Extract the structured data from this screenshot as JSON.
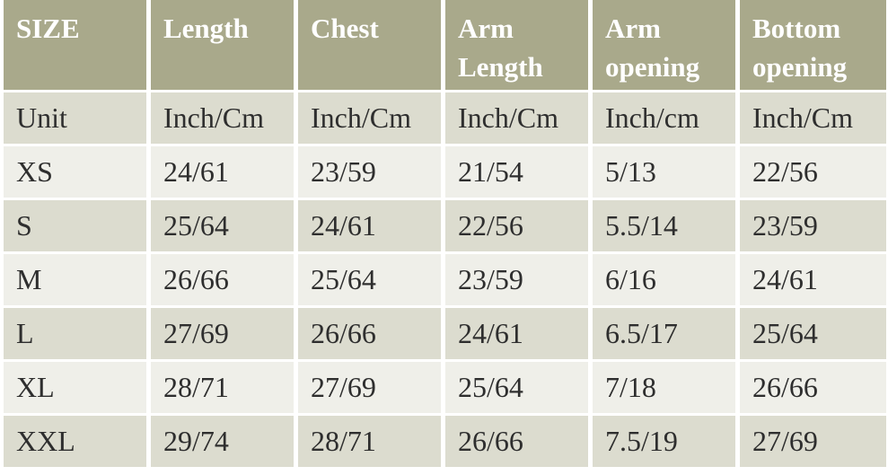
{
  "table": {
    "header": [
      "SIZE",
      "Length",
      "Chest",
      "Arm Length",
      "Arm opening",
      "Bottom opening"
    ],
    "rows": [
      [
        "Unit",
        "Inch/Cm",
        "Inch/Cm",
        "Inch/Cm",
        "Inch/cm",
        "Inch/Cm"
      ],
      [
        "XS",
        "24/61",
        "23/59",
        "21/54",
        "5/13",
        "22/56"
      ],
      [
        "S",
        "25/64",
        "24/61",
        "22/56",
        "5.5/14",
        "23/59"
      ],
      [
        "M",
        "26/66",
        "25/64",
        "23/59",
        "6/16",
        "24/61"
      ],
      [
        "L",
        "27/69",
        "26/66",
        "24/61",
        "6.5/17",
        "25/64"
      ],
      [
        "XL",
        "28/71",
        "27/69",
        "25/64",
        "7/18",
        "26/66"
      ],
      [
        "XXL",
        "29/74",
        "28/71",
        "26/66",
        "7.5/19",
        "27/69"
      ]
    ]
  }
}
